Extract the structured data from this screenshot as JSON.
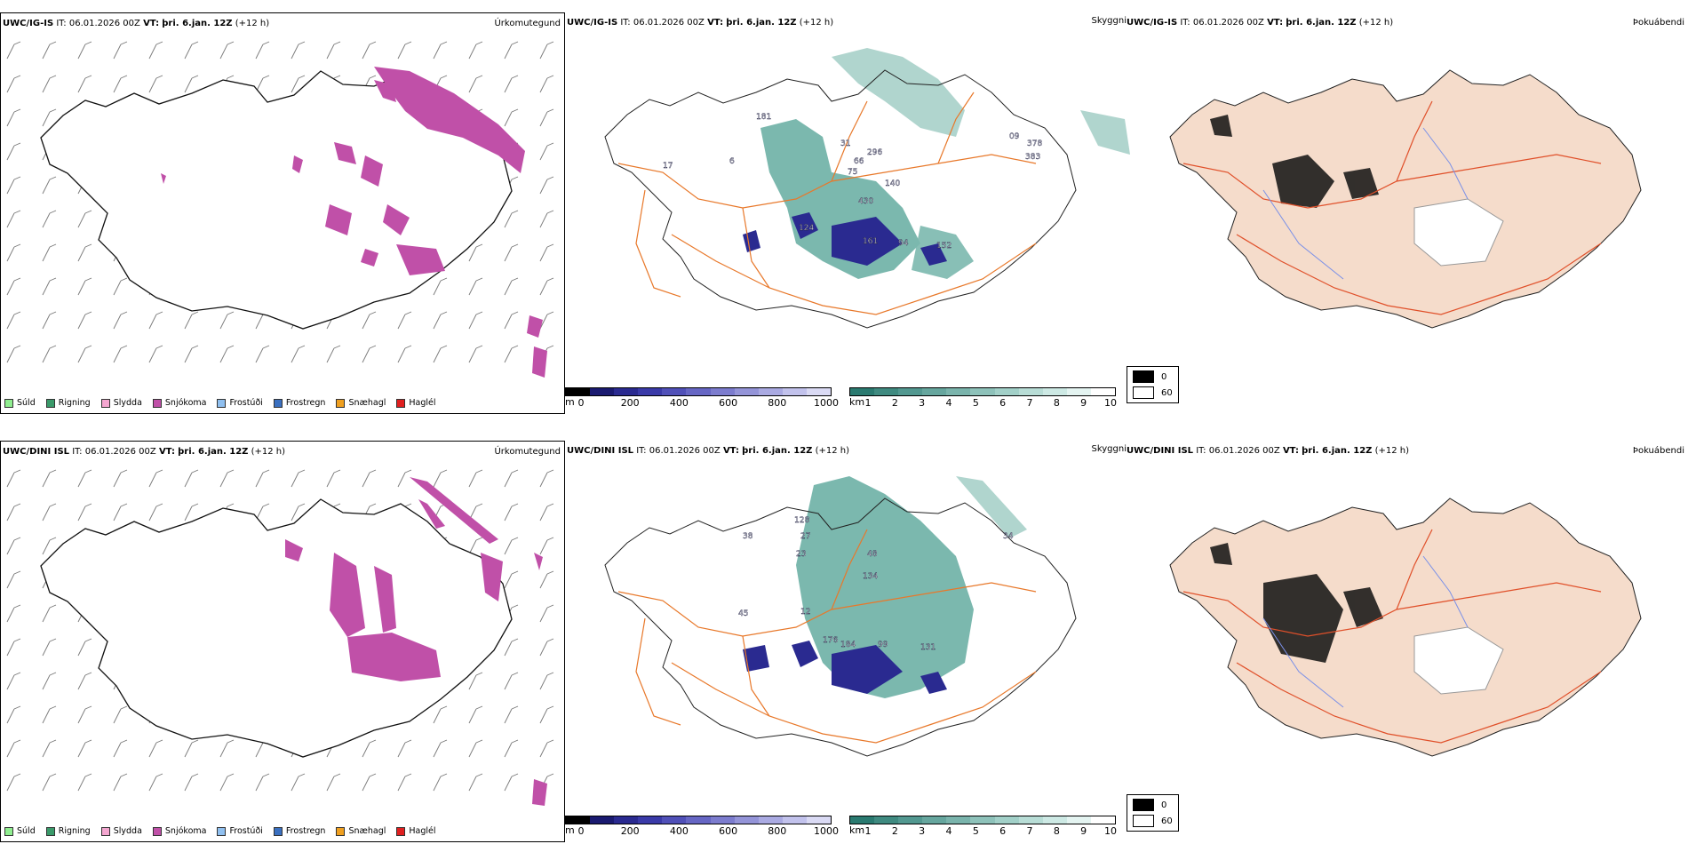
{
  "rows": [
    {
      "model": "UWC/IG-IS",
      "it_label": "IT:",
      "it": "06.01.2026 00Z",
      "vt_label": "VT:",
      "vt": "þri. 6.jan. 12Z",
      "lead": "(+12 h)"
    },
    {
      "model": "UWC/DINI ISL",
      "it_label": "IT:",
      "it": "06.01.2026 00Z",
      "vt_label": "VT:",
      "vt": "þri. 6.jan. 12Z",
      "lead": "(+12 h)"
    }
  ],
  "titles": {
    "precip": "Úrkomutegund",
    "visibility": "Skyggni",
    "fog": "Þokuábendi"
  },
  "precip_legend": [
    {
      "label": "Súld",
      "color": "#90ee90"
    },
    {
      "label": "Rigning",
      "color": "#3a9a6a"
    },
    {
      "label": "Slydda",
      "color": "#f4a6d0"
    },
    {
      "label": "Snjókoma",
      "color": "#c050a8"
    },
    {
      "label": "Frostúði",
      "color": "#90c0f0"
    },
    {
      "label": "Frostregn",
      "color": "#3a70c0"
    },
    {
      "label": "Snæhagl",
      "color": "#f0a020"
    },
    {
      "label": "Haglél",
      "color": "#e02020"
    }
  ],
  "elev_bar": {
    "unit": "m",
    "ticks": [
      "0",
      "200",
      "400",
      "600",
      "800",
      "1000"
    ],
    "colors": [
      "#000000",
      "#1a1a70",
      "#2a2a90",
      "#3a3aa8",
      "#5050b8",
      "#6666c4",
      "#7c7cce",
      "#9494d8",
      "#aaaae2",
      "#c2c2ec",
      "#dadaf4"
    ]
  },
  "vis_bar": {
    "unit": "km",
    "ticks": [
      "1",
      "2",
      "3",
      "4",
      "5",
      "6",
      "7",
      "8",
      "9",
      "10"
    ],
    "colors": [
      "#2a7a70",
      "#3f8a80",
      "#529890",
      "#66a69e",
      "#7ab4ac",
      "#8ec2ba",
      "#a2d0c8",
      "#b8ddd6",
      "#cde9e4",
      "#e4f4f1",
      "#ffffff"
    ]
  },
  "fog_key": [
    {
      "label": "0",
      "color": "#000000"
    },
    {
      "label": "60",
      "color": "#ffffff"
    }
  ],
  "vis_labels_row1": [
    "181",
    "31",
    "66",
    "296",
    "140",
    "430",
    "124",
    "161",
    "94",
    "152",
    "09",
    "378",
    "383",
    "17",
    "6",
    "75"
  ],
  "vis_labels_row2": [
    "38",
    "128",
    "27",
    "23",
    "48",
    "134",
    "12",
    "45",
    "176",
    "184",
    "99",
    "131",
    "34"
  ],
  "colors": {
    "snow": "#c050a8",
    "road": "#e8782a",
    "land": "#f5dccb",
    "vis_fill": "#6aa99e",
    "elev_low": "#2a2a90"
  }
}
